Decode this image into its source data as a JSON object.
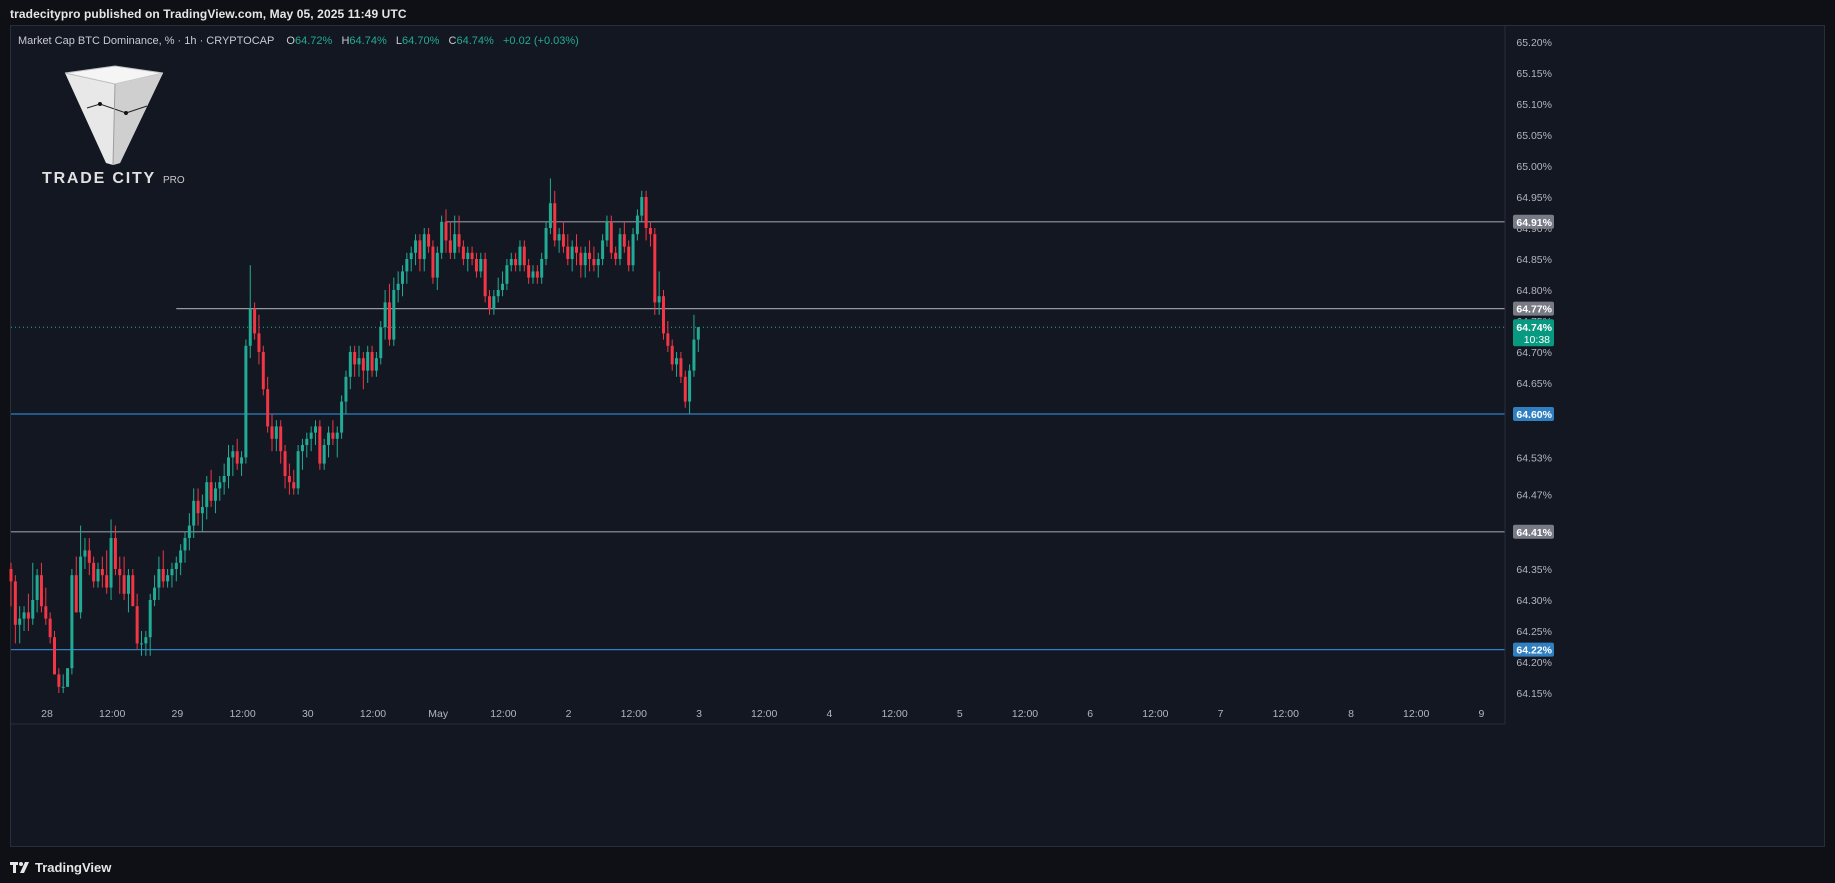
{
  "header": {
    "published": "tradecitypro published on TradingView.com, May 05, 2025 11:49 UTC"
  },
  "legend": {
    "symbol": "Market Cap BTC Dominance, % · 1h · CRYPTOCAP",
    "o_label": "O",
    "o_value": "64.72%",
    "h_label": "H",
    "h_value": "64.74%",
    "l_label": "L",
    "l_value": "64.70%",
    "c_label": "C",
    "c_value": "64.74%",
    "change": "+0.02 (+0.03%)"
  },
  "watermark": {
    "brand": "TRADE CITY",
    "suffix": "PRO"
  },
  "footer": {
    "logo_text": "TradingView"
  },
  "colors": {
    "background": "#131722",
    "up": "#22ab94",
    "down": "#f23645",
    "blue_line": "#2962ff",
    "gray_line": "#9598a1"
  },
  "chart_data": {
    "type": "candlestick",
    "title": "Market Cap BTC Dominance, %",
    "timeframe": "1h",
    "exchange": "CRYPTOCAP",
    "ylim": [
      64.13,
      65.22
    ],
    "y_ticks": [
      "65.20%",
      "65.15%",
      "65.10%",
      "65.05%",
      "65.00%",
      "64.95%",
      "64.90%",
      "64.85%",
      "64.80%",
      "64.75%",
      "64.70%",
      "64.65%",
      "64.60%",
      "64.53%",
      "64.47%",
      "64.41%",
      "64.35%",
      "64.30%",
      "64.25%",
      "64.20%",
      "64.15%"
    ],
    "x_ticks": [
      "28",
      "12:00",
      "29",
      "12:00",
      "30",
      "12:00",
      "May",
      "12:00",
      "2",
      "12:00",
      "3",
      "12:00",
      "4",
      "12:00",
      "5",
      "12:00",
      "6",
      "12:00",
      "7",
      "12:00",
      "8",
      "12:00",
      "9"
    ],
    "horizontal_lines": [
      {
        "price": 64.91,
        "label": "64.91%",
        "style": "gray",
        "from_bar": 100
      },
      {
        "price": 64.77,
        "label": "64.77%",
        "style": "gray",
        "from_bar": 38
      },
      {
        "price": 64.6,
        "label": "64.60%",
        "style": "blue",
        "from_bar": 0
      },
      {
        "price": 64.41,
        "label": "64.41%",
        "style": "gray",
        "from_bar": 0
      },
      {
        "price": 64.22,
        "label": "64.22%",
        "style": "blue",
        "from_bar": 0
      }
    ],
    "last_price": {
      "price": 64.74,
      "label": "64.74%",
      "countdown": "10:38"
    },
    "candles": [
      [
        64.35,
        64.36,
        64.29,
        64.33
      ],
      [
        64.33,
        64.34,
        64.23,
        64.26
      ],
      [
        64.26,
        64.29,
        64.23,
        64.27
      ],
      [
        64.27,
        64.29,
        64.25,
        64.28
      ],
      [
        64.28,
        64.31,
        64.25,
        64.27
      ],
      [
        64.27,
        64.36,
        64.26,
        64.3
      ],
      [
        64.3,
        64.35,
        64.28,
        64.34
      ],
      [
        64.34,
        64.36,
        64.28,
        64.29
      ],
      [
        64.29,
        64.32,
        64.26,
        64.27
      ],
      [
        64.27,
        64.28,
        64.23,
        64.24
      ],
      [
        64.24,
        64.25,
        64.18,
        64.18
      ],
      [
        64.18,
        64.19,
        64.15,
        64.16
      ],
      [
        64.16,
        64.18,
        64.15,
        64.16
      ],
      [
        64.16,
        64.19,
        64.16,
        64.19
      ],
      [
        64.19,
        64.35,
        64.18,
        64.34
      ],
      [
        64.34,
        64.37,
        64.28,
        64.28
      ],
      [
        64.28,
        64.42,
        64.27,
        64.37
      ],
      [
        64.37,
        64.4,
        64.35,
        64.38
      ],
      [
        64.38,
        64.4,
        64.34,
        64.36
      ],
      [
        64.36,
        64.37,
        64.32,
        64.33
      ],
      [
        64.33,
        64.36,
        64.32,
        64.35
      ],
      [
        64.35,
        64.37,
        64.32,
        64.34
      ],
      [
        64.34,
        64.38,
        64.31,
        64.32
      ],
      [
        64.32,
        64.43,
        64.3,
        64.4
      ],
      [
        64.4,
        64.42,
        64.34,
        64.35
      ],
      [
        64.35,
        64.37,
        64.31,
        64.34
      ],
      [
        64.34,
        64.37,
        64.3,
        64.31
      ],
      [
        64.31,
        64.35,
        64.28,
        64.34
      ],
      [
        64.34,
        64.35,
        64.29,
        64.29
      ],
      [
        64.29,
        64.31,
        64.22,
        64.23
      ],
      [
        64.23,
        64.25,
        64.21,
        64.23
      ],
      [
        64.23,
        64.25,
        64.21,
        64.24
      ],
      [
        64.24,
        64.31,
        64.21,
        64.3
      ],
      [
        64.3,
        64.34,
        64.29,
        64.32
      ],
      [
        64.32,
        64.37,
        64.3,
        64.35
      ],
      [
        64.35,
        64.38,
        64.32,
        64.33
      ],
      [
        64.33,
        64.35,
        64.32,
        64.34
      ],
      [
        64.34,
        64.36,
        64.32,
        64.35
      ],
      [
        64.35,
        64.37,
        64.33,
        64.36
      ],
      [
        64.36,
        64.39,
        64.34,
        64.38
      ],
      [
        64.38,
        64.41,
        64.36,
        64.4
      ],
      [
        64.4,
        64.44,
        64.38,
        64.42
      ],
      [
        64.42,
        64.48,
        64.4,
        64.46
      ],
      [
        64.46,
        64.48,
        64.42,
        64.44
      ],
      [
        64.44,
        64.47,
        64.41,
        64.45
      ],
      [
        64.45,
        64.5,
        64.43,
        64.49
      ],
      [
        64.49,
        64.51,
        64.45,
        64.46
      ],
      [
        64.46,
        64.49,
        64.44,
        64.48
      ],
      [
        64.48,
        64.5,
        64.46,
        64.49
      ],
      [
        64.49,
        64.52,
        64.47,
        64.5
      ],
      [
        64.5,
        64.55,
        64.48,
        64.53
      ],
      [
        64.53,
        64.55,
        64.5,
        64.54
      ],
      [
        64.54,
        64.56,
        64.51,
        64.52
      ],
      [
        64.52,
        64.54,
        64.5,
        64.53
      ],
      [
        64.53,
        64.72,
        64.52,
        64.71
      ],
      [
        64.71,
        64.84,
        64.69,
        64.77
      ],
      [
        64.77,
        64.78,
        64.72,
        64.73
      ],
      [
        64.73,
        64.76,
        64.68,
        64.7
      ],
      [
        64.7,
        64.71,
        64.63,
        64.64
      ],
      [
        64.64,
        64.66,
        64.57,
        64.58
      ],
      [
        64.58,
        64.6,
        64.54,
        64.56
      ],
      [
        64.56,
        64.59,
        64.54,
        64.58
      ],
      [
        64.58,
        64.59,
        64.52,
        64.54
      ],
      [
        64.54,
        64.55,
        64.48,
        64.5
      ],
      [
        64.5,
        64.52,
        64.47,
        64.49
      ],
      [
        64.49,
        64.51,
        64.47,
        64.48
      ],
      [
        64.48,
        64.55,
        64.47,
        64.54
      ],
      [
        64.54,
        64.56,
        64.51,
        64.55
      ],
      [
        64.55,
        64.57,
        64.53,
        64.56
      ],
      [
        64.56,
        64.58,
        64.54,
        64.57
      ],
      [
        64.57,
        64.59,
        64.55,
        64.58
      ],
      [
        64.58,
        64.59,
        64.51,
        64.52
      ],
      [
        64.52,
        64.56,
        64.51,
        64.55
      ],
      [
        64.55,
        64.58,
        64.53,
        64.57
      ],
      [
        64.57,
        64.59,
        64.55,
        64.56
      ],
      [
        64.56,
        64.58,
        64.53,
        64.57
      ],
      [
        64.57,
        64.63,
        64.56,
        64.62
      ],
      [
        64.62,
        64.67,
        64.6,
        64.66
      ],
      [
        64.66,
        64.71,
        64.64,
        64.7
      ],
      [
        64.7,
        64.71,
        64.66,
        64.68
      ],
      [
        64.68,
        64.71,
        64.66,
        64.69
      ],
      [
        64.69,
        64.7,
        64.64,
        64.67
      ],
      [
        64.67,
        64.71,
        64.65,
        64.7
      ],
      [
        64.7,
        64.71,
        64.66,
        64.67
      ],
      [
        64.67,
        64.7,
        64.66,
        64.69
      ],
      [
        64.69,
        64.75,
        64.68,
        64.74
      ],
      [
        64.74,
        64.8,
        64.72,
        64.78
      ],
      [
        64.78,
        64.81,
        64.71,
        64.72
      ],
      [
        64.72,
        64.82,
        64.71,
        64.8
      ],
      [
        64.8,
        64.83,
        64.78,
        64.81
      ],
      [
        64.81,
        64.84,
        64.79,
        64.83
      ],
      [
        64.83,
        64.86,
        64.81,
        64.85
      ],
      [
        64.85,
        64.87,
        64.83,
        64.86
      ],
      [
        64.86,
        64.89,
        64.84,
        64.88
      ],
      [
        64.88,
        64.89,
        64.83,
        64.85
      ],
      [
        64.85,
        64.9,
        64.83,
        64.89
      ],
      [
        64.89,
        64.9,
        64.86,
        64.87
      ],
      [
        64.87,
        64.88,
        64.81,
        64.82
      ],
      [
        64.82,
        64.87,
        64.8,
        64.86
      ],
      [
        64.86,
        64.92,
        64.85,
        64.91
      ],
      [
        64.91,
        64.93,
        64.86,
        64.88
      ],
      [
        64.88,
        64.91,
        64.85,
        64.86
      ],
      [
        64.86,
        64.92,
        64.85,
        64.89
      ],
      [
        64.89,
        64.92,
        64.86,
        64.87
      ],
      [
        64.87,
        64.88,
        64.84,
        64.85
      ],
      [
        64.85,
        64.87,
        64.83,
        64.86
      ],
      [
        64.86,
        64.87,
        64.84,
        64.85
      ],
      [
        64.85,
        64.86,
        64.82,
        64.83
      ],
      [
        64.83,
        64.86,
        64.82,
        64.85
      ],
      [
        64.85,
        64.86,
        64.78,
        64.79
      ],
      [
        64.79,
        64.8,
        64.76,
        64.77
      ],
      [
        64.77,
        64.8,
        64.76,
        64.79
      ],
      [
        64.79,
        64.82,
        64.78,
        64.8
      ],
      [
        64.8,
        64.83,
        64.79,
        64.81
      ],
      [
        64.81,
        64.85,
        64.8,
        64.84
      ],
      [
        64.84,
        64.86,
        64.83,
        64.85
      ],
      [
        64.85,
        64.86,
        64.83,
        64.84
      ],
      [
        64.84,
        64.88,
        64.83,
        64.87
      ],
      [
        64.87,
        64.88,
        64.83,
        64.84
      ],
      [
        64.84,
        64.85,
        64.81,
        64.82
      ],
      [
        64.82,
        64.84,
        64.81,
        64.83
      ],
      [
        64.83,
        64.84,
        64.81,
        64.82
      ],
      [
        64.82,
        64.86,
        64.81,
        64.85
      ],
      [
        64.85,
        64.91,
        64.84,
        64.9
      ],
      [
        64.9,
        64.98,
        64.89,
        64.94
      ],
      [
        64.94,
        64.96,
        64.87,
        64.88
      ],
      [
        64.88,
        64.9,
        64.86,
        64.89
      ],
      [
        64.89,
        64.91,
        64.86,
        64.87
      ],
      [
        64.87,
        64.89,
        64.84,
        64.85
      ],
      [
        64.85,
        64.88,
        64.83,
        64.87
      ],
      [
        64.87,
        64.89,
        64.84,
        64.86
      ],
      [
        64.86,
        64.87,
        64.82,
        64.84
      ],
      [
        64.84,
        64.87,
        64.82,
        64.86
      ],
      [
        64.86,
        64.88,
        64.83,
        64.85
      ],
      [
        64.85,
        64.87,
        64.83,
        64.84
      ],
      [
        64.84,
        64.86,
        64.82,
        64.85
      ],
      [
        64.85,
        64.89,
        64.84,
        64.88
      ],
      [
        64.88,
        64.92,
        64.87,
        64.91
      ],
      [
        64.91,
        64.92,
        64.85,
        64.86
      ],
      [
        64.86,
        64.87,
        64.84,
        64.85
      ],
      [
        64.85,
        64.9,
        64.84,
        64.89
      ],
      [
        64.89,
        64.91,
        64.86,
        64.87
      ],
      [
        64.87,
        64.88,
        64.83,
        64.84
      ],
      [
        64.84,
        64.9,
        64.83,
        64.89
      ],
      [
        64.89,
        64.93,
        64.88,
        64.92
      ],
      [
        64.92,
        64.96,
        64.91,
        64.95
      ],
      [
        64.95,
        64.96,
        64.88,
        64.9
      ],
      [
        64.9,
        64.91,
        64.87,
        64.89
      ],
      [
        64.89,
        64.9,
        64.76,
        64.78
      ],
      [
        64.78,
        64.83,
        64.76,
        64.79
      ],
      [
        64.79,
        64.8,
        64.72,
        64.73
      ],
      [
        64.73,
        64.75,
        64.7,
        64.71
      ],
      [
        64.71,
        64.72,
        64.67,
        64.68
      ],
      [
        64.68,
        64.7,
        64.66,
        64.69
      ],
      [
        64.69,
        64.7,
        64.65,
        64.66
      ],
      [
        64.66,
        64.67,
        64.61,
        64.62
      ],
      [
        64.62,
        64.68,
        64.6,
        64.67
      ],
      [
        64.67,
        64.76,
        64.66,
        64.72
      ],
      [
        64.72,
        64.74,
        64.7,
        64.74
      ]
    ]
  }
}
